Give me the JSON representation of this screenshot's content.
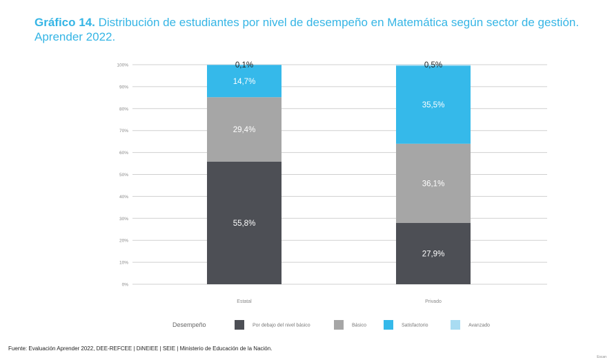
{
  "header": {
    "title_bold": "Gráfico 14.",
    "title_rest": "Distribución de estudiantes por nivel de desempeño en Matemática según sector de gestión. Aprender 2022."
  },
  "footer": {
    "source": "Fuente: Evaluación Aprender 2022, DEE-REFCEE | DiNEIEE | SEIE | Ministerio de Educación de la Nación.",
    "corner": "Escan"
  },
  "chart_data": {
    "type": "bar",
    "stacked": true,
    "categories": [
      "Estatal",
      "Privado"
    ],
    "ylim": [
      0,
      100
    ],
    "ytick_labels": [
      "0%",
      "10%",
      "20%",
      "30%",
      "40%",
      "50%",
      "60%",
      "70%",
      "80%",
      "90%",
      "100%"
    ],
    "grid": true,
    "legend_title": "Desempeño",
    "legend_position": "bottom",
    "series": [
      {
        "name": "Por debajo del nivel básico",
        "color": "#4d4f55",
        "values": [
          55.8,
          27.9
        ],
        "labels": [
          "55,8%",
          "27,9%"
        ]
      },
      {
        "name": "Básico",
        "color": "#a6a6a6",
        "values": [
          29.4,
          36.1
        ],
        "labels": [
          "29,4%",
          "36,1%"
        ]
      },
      {
        "name": "Satisfactorio",
        "color": "#35b9ea",
        "values": [
          14.7,
          35.5
        ],
        "labels": [
          "14,7%",
          "35,5%"
        ]
      },
      {
        "name": "Avanzado",
        "color": "#a9dcf2",
        "values": [
          0.1,
          0.5
        ],
        "labels": [
          "0,1%",
          "0,5%"
        ]
      }
    ]
  }
}
